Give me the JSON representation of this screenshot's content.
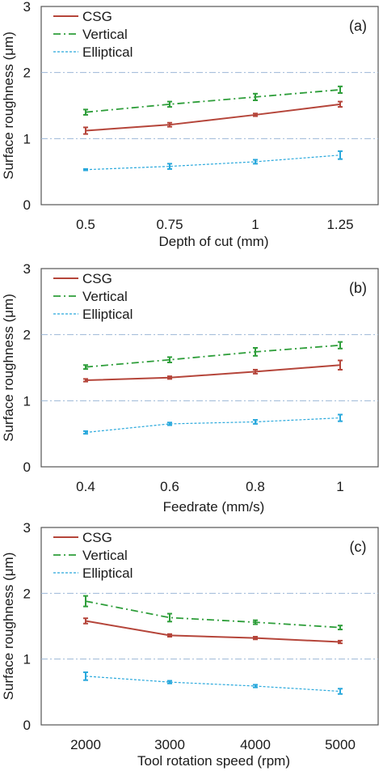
{
  "chart_data": [
    {
      "type": "line",
      "panel_label": "(a)",
      "categories": [
        "0.5",
        "0.75",
        "1",
        "1.25"
      ],
      "xlabel": "Depth of cut (mm)",
      "ylabel": "Surface roughness (μm)",
      "ylim": [
        0,
        3
      ],
      "yticks": [
        "0",
        "1",
        "2",
        "3"
      ],
      "grid": "horizontal dash-dot at 1 and 2",
      "legend_position": "top-left",
      "series": [
        {
          "name": "CSG",
          "color": "#b5453a",
          "style": "solid",
          "values": [
            1.12,
            1.21,
            1.36,
            1.52
          ],
          "errors": [
            0.05,
            0.03,
            0.02,
            0.04
          ]
        },
        {
          "name": "Vertical",
          "color": "#2e9e3a",
          "style": "dashdot",
          "values": [
            1.4,
            1.52,
            1.63,
            1.74
          ],
          "errors": [
            0.04,
            0.04,
            0.05,
            0.05
          ]
        },
        {
          "name": "Elliptical",
          "color": "#29a8dc",
          "style": "dotted",
          "values": [
            0.53,
            0.58,
            0.65,
            0.75
          ],
          "errors": [
            0.01,
            0.04,
            0.03,
            0.06
          ]
        }
      ]
    },
    {
      "type": "line",
      "panel_label": "(b)",
      "categories": [
        "0.4",
        "0.6",
        "0.8",
        "1"
      ],
      "xlabel": "Feedrate (mm/s)",
      "ylabel": "Surface roughness (μm)",
      "ylim": [
        0,
        3
      ],
      "yticks": [
        "0",
        "1",
        "2",
        "3"
      ],
      "grid": "horizontal dash-dot at 1 and 2",
      "legend_position": "top-left",
      "series": [
        {
          "name": "CSG",
          "color": "#b5453a",
          "style": "solid",
          "values": [
            1.31,
            1.35,
            1.44,
            1.54
          ],
          "errors": [
            0.02,
            0.02,
            0.03,
            0.07
          ]
        },
        {
          "name": "Vertical",
          "color": "#2e9e3a",
          "style": "dashdot",
          "values": [
            1.51,
            1.62,
            1.74,
            1.84
          ],
          "errors": [
            0.03,
            0.04,
            0.06,
            0.05
          ]
        },
        {
          "name": "Elliptical",
          "color": "#29a8dc",
          "style": "dotted",
          "values": [
            0.52,
            0.65,
            0.68,
            0.74
          ],
          "errors": [
            0.02,
            0.02,
            0.03,
            0.05
          ]
        }
      ]
    },
    {
      "type": "line",
      "panel_label": "(c)",
      "categories": [
        "2000",
        "3000",
        "4000",
        "5000"
      ],
      "xlabel": "Tool rotation speed (rpm)",
      "ylabel": "Surface roughness (μm)",
      "ylim": [
        0,
        3
      ],
      "yticks": [
        "0",
        "1",
        "2",
        "3"
      ],
      "grid": "horizontal dash-dot at 1 and 2",
      "legend_position": "top-left",
      "series": [
        {
          "name": "CSG",
          "color": "#b5453a",
          "style": "solid",
          "values": [
            1.58,
            1.36,
            1.32,
            1.26
          ],
          "errors": [
            0.04,
            0.02,
            0.02,
            0.02
          ]
        },
        {
          "name": "Vertical",
          "color": "#2e9e3a",
          "style": "dashdot",
          "values": [
            1.88,
            1.63,
            1.56,
            1.48
          ],
          "errors": [
            0.08,
            0.06,
            0.03,
            0.03
          ]
        },
        {
          "name": "Elliptical",
          "color": "#29a8dc",
          "style": "dotted",
          "values": [
            0.74,
            0.65,
            0.59,
            0.51
          ],
          "errors": [
            0.06,
            0.02,
            0.02,
            0.04
          ]
        }
      ]
    }
  ]
}
